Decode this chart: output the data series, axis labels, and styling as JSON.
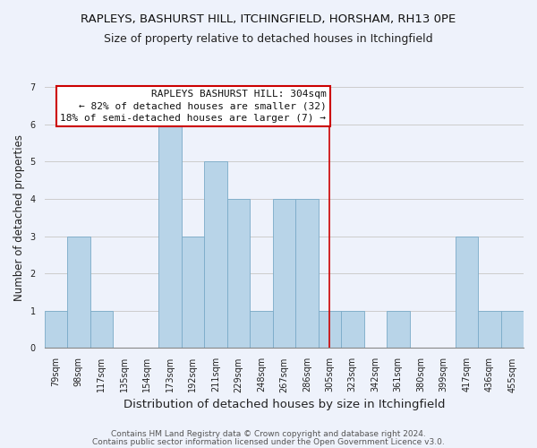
{
  "title": "RAPLEYS, BASHURST HILL, ITCHINGFIELD, HORSHAM, RH13 0PE",
  "subtitle": "Size of property relative to detached houses in Itchingfield",
  "xlabel": "Distribution of detached houses by size in Itchingfield",
  "ylabel": "Number of detached properties",
  "bar_color": "#b8d4e8",
  "bar_edge_color": "#7aaac8",
  "categories": [
    "79sqm",
    "98sqm",
    "117sqm",
    "135sqm",
    "154sqm",
    "173sqm",
    "192sqm",
    "211sqm",
    "229sqm",
    "248sqm",
    "267sqm",
    "286sqm",
    "305sqm",
    "323sqm",
    "342sqm",
    "361sqm",
    "380sqm",
    "399sqm",
    "417sqm",
    "436sqm",
    "455sqm"
  ],
  "values": [
    1,
    3,
    1,
    0,
    0,
    6,
    3,
    5,
    4,
    1,
    4,
    4,
    1,
    1,
    0,
    1,
    0,
    0,
    3,
    1,
    1
  ],
  "ylim": [
    0,
    7
  ],
  "yticks": [
    0,
    1,
    2,
    3,
    4,
    5,
    6,
    7
  ],
  "vline_x": 12,
  "vline_color": "#cc0000",
  "annotation_title": "RAPLEYS BASHURST HILL: 304sqm",
  "annotation_line1": "← 82% of detached houses are smaller (32)",
  "annotation_line2": "18% of semi-detached houses are larger (7) →",
  "annotation_box_color": "#cc0000",
  "grid_color": "#cccccc",
  "background_color": "#eef2fb",
  "footer_line1": "Contains HM Land Registry data © Crown copyright and database right 2024.",
  "footer_line2": "Contains public sector information licensed under the Open Government Licence v3.0.",
  "title_fontsize": 9.5,
  "subtitle_fontsize": 9,
  "xlabel_fontsize": 9.5,
  "ylabel_fontsize": 8.5,
  "tick_fontsize": 7,
  "footer_fontsize": 6.5,
  "annotation_fontsize": 8
}
